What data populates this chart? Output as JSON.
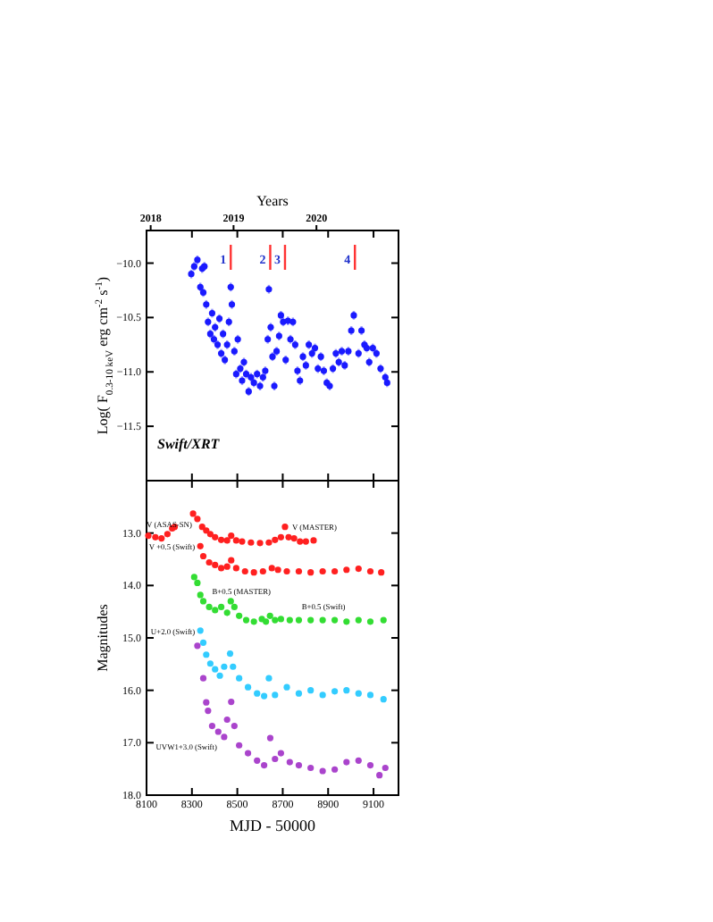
{
  "chart_data": [
    {
      "type": "scatter",
      "ylabel": "Log( F$_{0.3-10 keV}$ erg cm$^{-2}$ s$^{-1}$)",
      "x2label": "Years",
      "xlim": [
        8100,
        9210
      ],
      "xticks": [
        {
          "value": 8100,
          "label": null
        },
        {
          "value": 8300,
          "label": null
        },
        {
          "value": 8500,
          "label": null
        },
        {
          "value": 8700,
          "label": null
        },
        {
          "value": 8900,
          "label": null
        },
        {
          "value": 9100,
          "label": null
        }
      ],
      "x2lim": [
        2017.95,
        2020.99
      ],
      "x2ticks": [
        2018,
        2019,
        2020
      ],
      "ylim": [
        -12,
        -9.7
      ],
      "yticks": [
        {
          "value": -10,
          "label": "−10.0"
        },
        {
          "value": -10.5,
          "label": "−10.5"
        },
        {
          "value": -11,
          "label": "−11.0"
        },
        {
          "value": -11.5,
          "label": "−11.5"
        }
      ],
      "tick_labels": "y",
      "marker": "circle",
      "series": [
        {
          "color": "#1a1aff",
          "x": [
            8297,
            8310,
            8324,
            8345,
            8355,
            8337,
            8350,
            8363,
            8371,
            8381,
            8389,
            8397,
            8402,
            8413,
            8421,
            8429,
            8437,
            8445,
            8455,
            8463,
            8471,
            8476,
            8487,
            8495,
            8502,
            8513,
            8521,
            8529,
            8539,
            8550,
            8560,
            8573,
            8587,
            8600,
            8613,
            8623,
            8634,
            8639,
            8647,
            8655,
            8663,
            8673,
            8684,
            8692,
            8702,
            8713,
            8723,
            8734,
            8745,
            8755,
            8765,
            8776,
            8789,
            8802,
            8815,
            8829,
            8842,
            8855,
            8868,
            8881,
            8894,
            8907,
            8921,
            8934,
            8947,
            8960,
            8973,
            8989,
            9002,
            9013,
            9034,
            9047,
            9060,
            9070,
            9081,
            9097,
            9113,
            9131,
            9152,
            9160
          ],
          "values": [
            -10.1,
            -10.03,
            -9.97,
            -10.05,
            -10.03,
            -10.22,
            -10.27,
            -10.38,
            -10.54,
            -10.65,
            -10.46,
            -10.7,
            -10.59,
            -10.75,
            -10.51,
            -10.83,
            -10.65,
            -10.89,
            -10.75,
            -10.54,
            -10.22,
            -10.38,
            -10.81,
            -11.02,
            -10.7,
            -10.97,
            -11.08,
            -10.91,
            -11.02,
            -11.18,
            -11.05,
            -11.1,
            -11.02,
            -11.13,
            -11.05,
            -10.99,
            -10.7,
            -10.24,
            -10.59,
            -10.86,
            -11.13,
            -10.81,
            -10.67,
            -10.48,
            -10.54,
            -10.89,
            -10.53,
            -10.7,
            -10.54,
            -10.75,
            -10.99,
            -11.08,
            -10.86,
            -10.94,
            -10.75,
            -10.83,
            -10.78,
            -10.97,
            -10.86,
            -10.99,
            -11.1,
            -11.13,
            -10.97,
            -10.83,
            -10.91,
            -10.81,
            -10.94,
            -10.81,
            -10.62,
            -10.48,
            -10.83,
            -10.62,
            -10.75,
            -10.78,
            -10.91,
            -10.78,
            -10.83,
            -10.97,
            -11.05,
            -11.1
          ],
          "errors": [
            0.04,
            0.04,
            0.04,
            0.04,
            0.04,
            0.04,
            0.04,
            0.04,
            0.04,
            0.04,
            0.04,
            0.04,
            0.04,
            0.04,
            0.04,
            0.04,
            0.04,
            0.04,
            0.04,
            0.04,
            0.04,
            0.04,
            0.04,
            0.04,
            0.04,
            0.04,
            0.04,
            0.04,
            0.04,
            0.04,
            0.04,
            0.04,
            0.04,
            0.04,
            0.04,
            0.04,
            0.04,
            0.04,
            0.04,
            0.04,
            0.04,
            0.04,
            0.04,
            0.04,
            0.04,
            0.04,
            0.04,
            0.04,
            0.04,
            0.04,
            0.04,
            0.04,
            0.04,
            0.04,
            0.04,
            0.04,
            0.04,
            0.04,
            0.04,
            0.04,
            0.04,
            0.04,
            0.04,
            0.04,
            0.04,
            0.04,
            0.04,
            0.04,
            0.04,
            0.04,
            0.04,
            0.04,
            0.04,
            0.04,
            0.04,
            0.04,
            0.04,
            0.04,
            0.04,
            0.04
          ]
        }
      ],
      "ref_lines": [
        {
          "axis": "x",
          "value": 8471,
          "color": "#ff3333"
        },
        {
          "axis": "x",
          "value": 8645,
          "color": "#ff3333"
        },
        {
          "axis": "x",
          "value": 8710,
          "color": "#ff3333"
        },
        {
          "axis": "x",
          "value": 9018,
          "color": "#ff3333"
        }
      ],
      "annotations": [
        "Swift/XRT",
        {
          "text": "1",
          "x": 8471,
          "y": -9.96
        },
        {
          "text": "2",
          "x": 8645,
          "y": -9.96
        },
        {
          "text": "3",
          "x": 8710,
          "y": -9.96
        },
        {
          "text": "4",
          "x": 9018,
          "y": -9.96
        }
      ]
    },
    {
      "type": "scatter",
      "xlabel": "MJD - 50000",
      "ylabel": "Magnitudes",
      "xlim": [
        8100,
        9210
      ],
      "xticks": [
        8100,
        8300,
        8500,
        8700,
        8900,
        9100
      ],
      "ylim": [
        18,
        12
      ],
      "yticks": [
        {
          "value": 13,
          "label": "13.0"
        },
        {
          "value": 14,
          "label": "14.0"
        },
        {
          "value": 15,
          "label": "15.0"
        },
        {
          "value": 16,
          "label": "16.0"
        },
        {
          "value": 17,
          "label": "17.0"
        },
        {
          "value": 18,
          "label": "18.0"
        }
      ],
      "marker": "circle",
      "series": [
        {
          "name": "V (ASAS-SN)",
          "color": "#ff2020",
          "x": [
            8108,
            8139,
            8166,
            8192,
            8213,
            8224
          ],
          "values": [
            13.05,
            13.08,
            13.1,
            13.02,
            12.91,
            12.88
          ]
        },
        {
          "name": "V (MASTER)",
          "color": "#ff2020",
          "x": [
            8305,
            8324,
            8345,
            8363,
            8381,
            8402,
            8429,
            8455,
            8473,
            8495,
            8521,
            8560,
            8600,
            8639,
            8666,
            8692,
            8710,
            8726,
            8750,
            8776,
            8802,
            8836
          ],
          "values": [
            12.63,
            12.73,
            12.88,
            12.95,
            13.02,
            13.08,
            13.13,
            13.14,
            13.05,
            13.14,
            13.16,
            13.18,
            13.19,
            13.18,
            13.13,
            13.08,
            12.88,
            13.08,
            13.1,
            13.16,
            13.16,
            13.14
          ]
        },
        {
          "name": "V +0.5 (Swift)",
          "color": "#ff2020",
          "x": [
            8337,
            8350,
            8376,
            8402,
            8429,
            8455,
            8473,
            8495,
            8534,
            8573,
            8613,
            8652,
            8679,
            8718,
            8771,
            8823,
            8876,
            8929,
            8981,
            9034,
            9086,
            9134
          ],
          "values": [
            13.25,
            13.44,
            13.56,
            13.61,
            13.67,
            13.64,
            13.52,
            13.67,
            13.73,
            13.75,
            13.73,
            13.67,
            13.7,
            13.73,
            13.73,
            13.75,
            13.73,
            13.73,
            13.7,
            13.68,
            13.73,
            13.75
          ]
        },
        {
          "name": "B+0.5 (MASTER)",
          "color": "#33dd33",
          "x": [
            8310,
            8324,
            8337,
            8350,
            8376,
            8402,
            8429,
            8455,
            8471,
            8487,
            8508,
            8539,
            8573,
            8608,
            8626
          ],
          "values": [
            13.84,
            13.95,
            14.18,
            14.3,
            14.41,
            14.47,
            14.41,
            14.52,
            14.3,
            14.41,
            14.58,
            14.66,
            14.69,
            14.64,
            14.69
          ]
        },
        {
          "name": "B+0.5 (Swift)",
          "color": "#33dd33",
          "x": [
            8644,
            8666,
            8692,
            8731,
            8771,
            8823,
            8876,
            8929,
            8981,
            9034,
            9086,
            9144
          ],
          "values": [
            14.58,
            14.66,
            14.64,
            14.66,
            14.66,
            14.66,
            14.66,
            14.66,
            14.69,
            14.66,
            14.69,
            14.66
          ]
        },
        {
          "name": "U+2.0 (Swift)",
          "color": "#33ccff",
          "x": [
            8337,
            8350,
            8363,
            8381,
            8402,
            8423,
            8442,
            8468,
            8481,
            8508,
            8547,
            8587,
            8618,
            8639,
            8666,
            8718,
            8771,
            8823,
            8876,
            8929,
            8981,
            9034,
            9086,
            9144
          ],
          "values": [
            14.86,
            15.09,
            15.32,
            15.49,
            15.6,
            15.72,
            15.55,
            15.3,
            15.55,
            15.77,
            15.94,
            16.06,
            16.11,
            15.77,
            16.09,
            15.94,
            16.06,
            16,
            16.09,
            16.02,
            16,
            16.06,
            16.09,
            16.17
          ]
        },
        {
          "name": "UVW1+3.0 (Swift)",
          "color": "#aa44cc",
          "x": [
            8324,
            8350,
            8363,
            8371,
            8389,
            8416,
            8442,
            8455,
            8473,
            8487,
            8508,
            8547,
            8587,
            8618,
            8645,
            8666,
            8692,
            8731,
            8771,
            8823,
            8876,
            8929,
            8981,
            9034,
            9086,
            9126,
            9152
          ],
          "values": [
            15.15,
            15.77,
            16.23,
            16.39,
            16.68,
            16.79,
            16.89,
            16.56,
            16.22,
            16.68,
            17.05,
            17.2,
            17.34,
            17.43,
            16.91,
            17.31,
            17.2,
            17.37,
            17.43,
            17.48,
            17.54,
            17.51,
            17.37,
            17.34,
            17.43,
            17.62,
            17.48
          ]
        }
      ]
    }
  ]
}
